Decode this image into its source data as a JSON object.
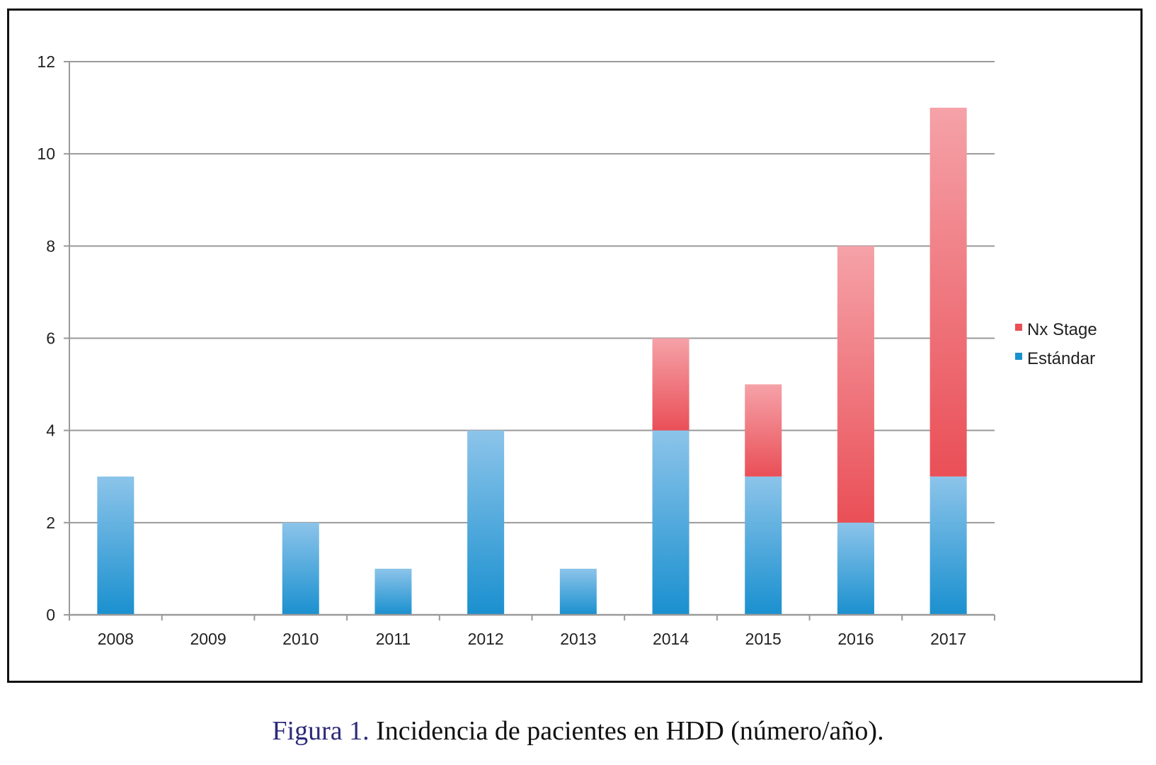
{
  "caption": {
    "label": "Figura 1.",
    "text": "Incidencia de pacientes en HDD (número/año)."
  },
  "colors": {
    "nx_stage": "#ea4f57",
    "nx_stage_light": "#f5a2a8",
    "estandar": "#1a90cf",
    "estandar_light": "#8cc4ea",
    "grid": "#9a9a9a"
  },
  "chart_data": {
    "type": "bar",
    "stacked": true,
    "categories": [
      "2008",
      "2009",
      "2010",
      "2011",
      "2012",
      "2013",
      "2014",
      "2015",
      "2016",
      "2017"
    ],
    "series": [
      {
        "name": "Estándar",
        "values": [
          3,
          0,
          2,
          1,
          4,
          1,
          4,
          3,
          2,
          3
        ]
      },
      {
        "name": "Nx Stage",
        "values": [
          0,
          0,
          0,
          0,
          0,
          0,
          2,
          2,
          6,
          8
        ]
      }
    ],
    "yticks": [
      "0",
      "2",
      "4",
      "6",
      "8",
      "10",
      "12"
    ],
    "ylim": [
      0,
      12
    ],
    "grid": true,
    "legend": {
      "placement": "right",
      "entries": [
        "Nx Stage",
        "Estándar"
      ]
    }
  }
}
